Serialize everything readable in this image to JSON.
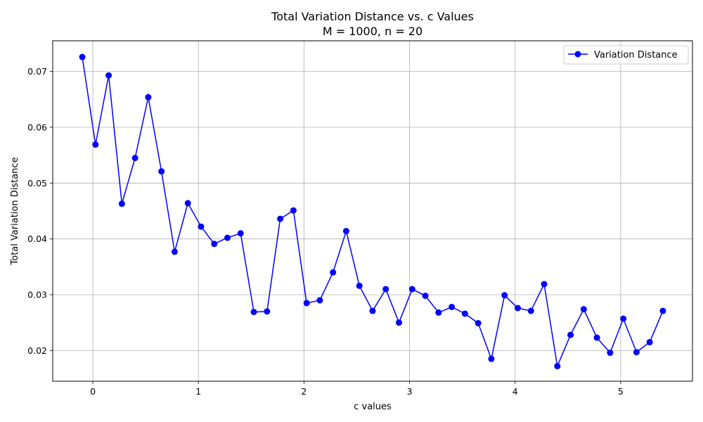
{
  "chart_data": {
    "type": "line",
    "title": "Total Variation Distance vs. c Values",
    "subtitle": "M = 1000, n = 20",
    "xlabel": "c values",
    "ylabel": "Total Variation Distance",
    "xlim": [
      -0.38,
      5.68
    ],
    "ylim": [
      0.0145,
      0.0755
    ],
    "xticks": [
      "0",
      "1",
      "2",
      "3",
      "4",
      "5"
    ],
    "yticks": [
      "0.02",
      "0.03",
      "0.04",
      "0.05",
      "0.06",
      "0.07"
    ],
    "grid": true,
    "legend_position": "top-right",
    "series": [
      {
        "name": "Variation Distance",
        "color": "#0000ff",
        "marker": "circle",
        "x": [
          -0.1,
          0.025,
          0.15,
          0.275,
          0.4,
          0.525,
          0.65,
          0.775,
          0.9,
          1.025,
          1.15,
          1.275,
          1.4,
          1.525,
          1.65,
          1.775,
          1.9,
          2.025,
          2.15,
          2.275,
          2.4,
          2.525,
          2.65,
          2.775,
          2.9,
          3.025,
          3.15,
          3.275,
          3.4,
          3.525,
          3.65,
          3.775,
          3.9,
          4.025,
          4.15,
          4.275,
          4.4,
          4.525,
          4.65,
          4.775,
          4.9,
          5.025,
          5.15,
          5.275,
          5.4
        ],
        "y": [
          0.0726,
          0.0569,
          0.0693,
          0.0463,
          0.0545,
          0.0654,
          0.0521,
          0.0377,
          0.0464,
          0.0422,
          0.0391,
          0.0402,
          0.041,
          0.0269,
          0.027,
          0.0436,
          0.0451,
          0.0285,
          0.029,
          0.034,
          0.0414,
          0.0316,
          0.0271,
          0.031,
          0.025,
          0.031,
          0.0298,
          0.0268,
          0.0278,
          0.0266,
          0.0249,
          0.0185,
          0.0299,
          0.0276,
          0.0271,
          0.0319,
          0.0172,
          0.0228,
          0.0274,
          0.0223,
          0.0196,
          0.0257,
          0.0197,
          0.0215,
          0.0271
        ]
      }
    ]
  }
}
